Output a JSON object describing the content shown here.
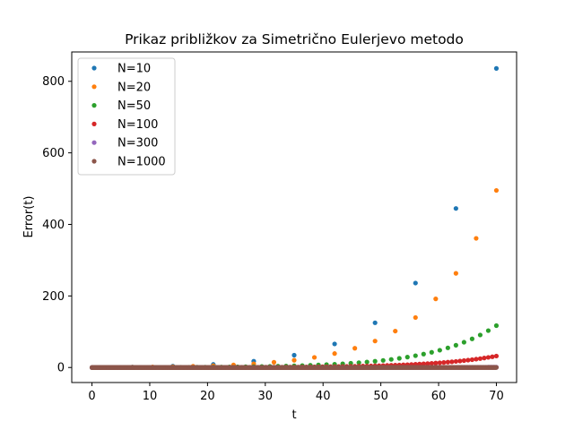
{
  "chart_data": {
    "type": "scatter",
    "title": "Prikaz približkov za Simetrično Eulerjevo metodo",
    "xlabel": "t",
    "ylabel": "Error(t)",
    "xlim": [
      -3.5,
      73.5
    ],
    "ylim": [
      -42,
      882
    ],
    "xticks": [
      0,
      10,
      20,
      30,
      40,
      50,
      60,
      70
    ],
    "yticks": [
      0,
      200,
      400,
      600,
      800
    ],
    "legend_position": "top-left",
    "grid": false,
    "t_end": 70,
    "series": [
      {
        "name": "N=10",
        "color": "#1f77b4",
        "n": 10,
        "scale": 836.0
      },
      {
        "name": "N=20",
        "color": "#ff7f0e",
        "n": 20,
        "scale": 495.0
      },
      {
        "name": "N=50",
        "color": "#2ca02c",
        "n": 50,
        "scale": 117.0
      },
      {
        "name": "N=100",
        "color": "#d62728",
        "n": 100,
        "scale": 32.0
      },
      {
        "name": "N=300",
        "color": "#9467bd",
        "n": 300,
        "scale": 0.9
      },
      {
        "name": "N=1000",
        "color": "#8c564b",
        "n": 1000,
        "scale": 0.2
      }
    ],
    "growth_exponent": 0.09
  }
}
